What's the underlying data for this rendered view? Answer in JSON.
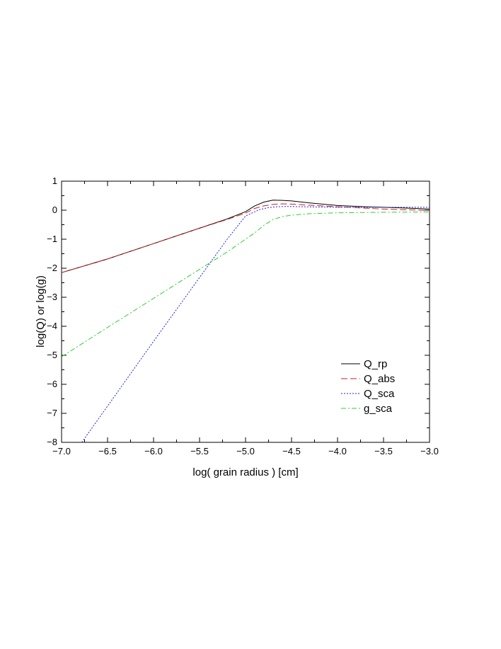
{
  "chart_data": {
    "type": "line",
    "title": "",
    "xlabel": "log( grain radius ) [cm]",
    "ylabel": "log(Q)  or  log(g)",
    "xlim": [
      -7.0,
      -3.0
    ],
    "ylim": [
      -8,
      1
    ],
    "x_ticks": [
      -7.0,
      -6.5,
      -6.0,
      -5.5,
      -5.0,
      -4.5,
      -4.0,
      -3.5,
      -3.0
    ],
    "x_tick_labels": [
      "−7.0",
      "−6.5",
      "−6.0",
      "−5.5",
      "−5.0",
      "−4.5",
      "−4.0",
      "−3.5",
      "−3.0"
    ],
    "y_ticks": [
      -8,
      -7,
      -6,
      -5,
      -4,
      -3,
      -2,
      -1,
      0,
      1
    ],
    "y_tick_labels": [
      "−8",
      "−7",
      "−6",
      "−5",
      "−4",
      "−3",
      "−2",
      "−1",
      "0",
      "1"
    ],
    "grid": false,
    "legend_position": "lower-right",
    "series": [
      {
        "name": "Q_rp",
        "color": "#000000",
        "dash": "solid",
        "x": [
          -7.0,
          -6.5,
          -6.0,
          -5.5,
          -5.2,
          -5.0,
          -4.9,
          -4.8,
          -4.7,
          -4.6,
          -4.5,
          -4.3,
          -4.0,
          -3.7,
          -3.5,
          -3.3,
          -3.0
        ],
        "y": [
          -2.15,
          -1.68,
          -1.15,
          -0.62,
          -0.3,
          -0.05,
          0.15,
          0.28,
          0.35,
          0.34,
          0.32,
          0.25,
          0.16,
          0.12,
          0.1,
          0.08,
          0.04
        ]
      },
      {
        "name": "Q_abs",
        "color": "#cc2222",
        "dash": "long-dash",
        "x": [
          -7.0,
          -6.5,
          -6.0,
          -5.5,
          -5.2,
          -5.0,
          -4.9,
          -4.8,
          -4.7,
          -4.6,
          -4.5,
          -4.3,
          -4.0,
          -3.7,
          -3.5,
          -3.3,
          -3.0
        ],
        "y": [
          -2.15,
          -1.68,
          -1.15,
          -0.62,
          -0.32,
          -0.1,
          0.06,
          0.15,
          0.2,
          0.22,
          0.21,
          0.17,
          0.12,
          0.07,
          0.04,
          0.02,
          -0.01
        ]
      },
      {
        "name": "Q_sca",
        "color": "#2222dd",
        "dash": "dotted",
        "x": [
          -6.78,
          -6.0,
          -5.5,
          -5.2,
          -5.0,
          -4.85,
          -4.75,
          -4.65,
          -4.55,
          -4.4,
          -4.0,
          -3.5,
          -3.0
        ],
        "y": [
          -8.0,
          -4.52,
          -2.32,
          -1.0,
          -0.2,
          0.02,
          0.09,
          0.12,
          0.13,
          0.12,
          0.1,
          0.1,
          0.1
        ]
      },
      {
        "name": "g_sca",
        "color": "#33cc33",
        "dash": "dash-dot",
        "x": [
          -7.0,
          -6.5,
          -6.0,
          -5.5,
          -5.2,
          -5.0,
          -4.9,
          -4.8,
          -4.7,
          -4.6,
          -4.5,
          -4.3,
          -4.0,
          -3.5,
          -3.0
        ],
        "y": [
          -5.05,
          -4.04,
          -3.04,
          -2.04,
          -1.44,
          -1.0,
          -0.78,
          -0.52,
          -0.32,
          -0.22,
          -0.17,
          -0.12,
          -0.09,
          -0.07,
          -0.06
        ]
      }
    ]
  }
}
